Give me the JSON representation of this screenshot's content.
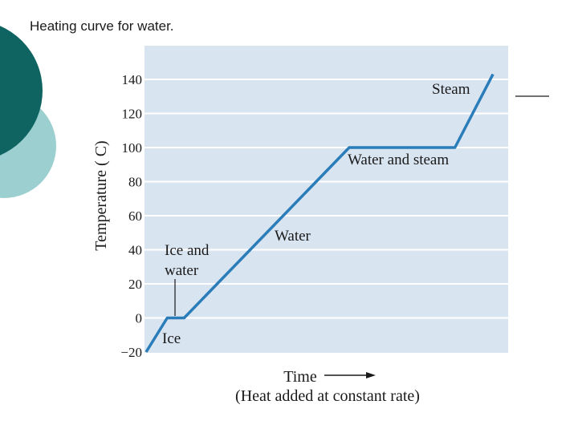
{
  "slide": {
    "title": "Heating curve for water."
  },
  "colors": {
    "plot_background": "#d9e4f1",
    "gridline": "#ffffff",
    "curve": "#2a7db8",
    "deco_dark": "#0f6462",
    "deco_light": "#9ccfcf"
  },
  "chart_data": {
    "type": "line",
    "title": "",
    "xlabel": "Time",
    "xlabel2": "(Heat added at constant rate)",
    "ylabel": "Temperature ( C)",
    "ylim": [
      -20,
      150
    ],
    "yticks": [
      -20,
      0,
      20,
      40,
      60,
      80,
      100,
      120,
      140
    ],
    "grid": true,
    "x_axis_arrow": true,
    "series": [
      {
        "x": [
          0,
          0.05,
          0.09,
          0.48,
          0.73,
          0.82
        ],
        "y": [
          -20,
          0,
          0,
          100,
          100,
          143
        ]
      }
    ],
    "annotations": [
      {
        "text": "Ice"
      },
      {
        "text": "Ice and"
      },
      {
        "text": "water"
      },
      {
        "text": "Water"
      },
      {
        "text": "Water and steam"
      },
      {
        "text": "Steam"
      }
    ]
  }
}
